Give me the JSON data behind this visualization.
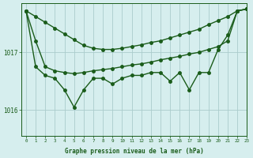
{
  "title": "Graphe pression niveau de la mer (hPa)",
  "background_color": "#d6eeee",
  "grid_color": "#aacccc",
  "line_color": "#1a5c1a",
  "xlim": [
    -0.5,
    23
  ],
  "ylim": [
    1015.55,
    1017.85
  ],
  "yticks": [
    1016,
    1017
  ],
  "xticks": [
    0,
    1,
    2,
    3,
    4,
    5,
    6,
    7,
    8,
    9,
    10,
    11,
    12,
    13,
    14,
    15,
    16,
    17,
    18,
    19,
    20,
    21,
    22,
    23
  ],
  "hours": [
    0,
    1,
    2,
    3,
    4,
    5,
    6,
    7,
    8,
    9,
    10,
    11,
    12,
    13,
    14,
    15,
    16,
    17,
    18,
    19,
    20,
    21,
    22,
    23
  ],
  "series_smooth": [
    1017.72,
    1017.62,
    1017.52,
    1017.42,
    1017.32,
    1017.22,
    1017.12,
    1017.07,
    1017.05,
    1017.05,
    1017.07,
    1017.1,
    1017.13,
    1017.17,
    1017.2,
    1017.25,
    1017.3,
    1017.35,
    1017.4,
    1017.48,
    1017.55,
    1017.62,
    1017.72,
    1017.75
  ],
  "series_gradual": [
    1017.72,
    1017.2,
    1016.75,
    1016.68,
    1016.65,
    1016.63,
    1016.65,
    1016.68,
    1016.7,
    1016.72,
    1016.75,
    1016.78,
    1016.8,
    1016.83,
    1016.87,
    1016.9,
    1016.93,
    1016.97,
    1017.0,
    1017.05,
    1017.1,
    1017.2,
    1017.72,
    1017.75
  ],
  "series_jagged": [
    1017.72,
    1016.75,
    1016.6,
    1016.55,
    1016.35,
    1016.05,
    1016.35,
    1016.55,
    1016.55,
    1016.45,
    1016.55,
    1016.6,
    1016.6,
    1016.65,
    1016.65,
    1016.5,
    1016.65,
    1016.35,
    1016.65,
    1016.65,
    1017.05,
    1017.3,
    1017.72,
    1017.75
  ]
}
